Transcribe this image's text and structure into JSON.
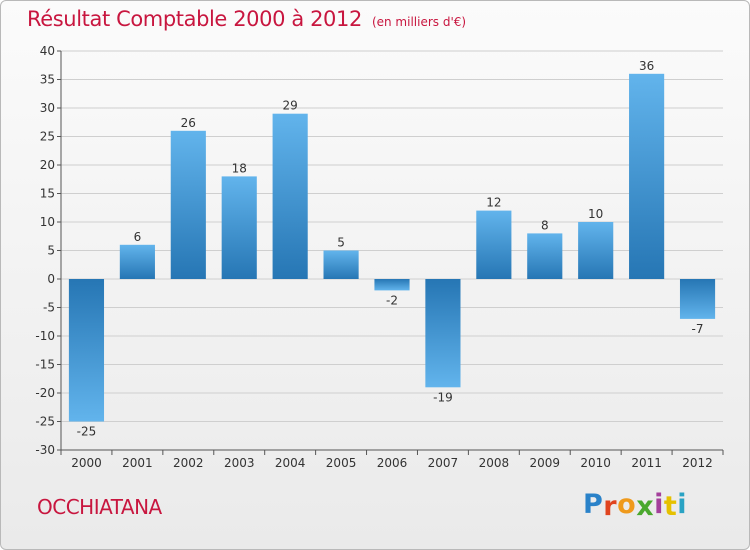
{
  "header": {
    "title": "Résultat Comptable 2000 à 2012",
    "unit": "(en milliers d'€)"
  },
  "footer": {
    "commune": "OCCHIATANA",
    "logo_letters": [
      "P",
      "r",
      "o",
      "x",
      "i",
      "t",
      "i"
    ],
    "logo_colors": [
      "#2a82c9",
      "#e0441f",
      "#ef9a1c",
      "#4aa82e",
      "#a43f9b",
      "#e6c100",
      "#2aa3c4"
    ]
  },
  "colors": {
    "bar_light": "#62b4ec",
    "bar_dark": "#2676b4",
    "title": "#c8163f"
  },
  "chart_data": {
    "type": "bar",
    "title": "Résultat Comptable 2000 à 2012",
    "ylabel": "en milliers d'€",
    "categories": [
      "2000",
      "2001",
      "2002",
      "2003",
      "2004",
      "2005",
      "2006",
      "2007",
      "2008",
      "2009",
      "2010",
      "2011",
      "2012"
    ],
    "values": [
      -25,
      6,
      26,
      18,
      29,
      5,
      -2,
      -19,
      12,
      8,
      10,
      36,
      -7
    ],
    "data_labels": [
      "-25",
      "6",
      "26",
      "18",
      "29",
      "5",
      "-2",
      "-19",
      "12",
      "8",
      "10",
      "36",
      "-7"
    ],
    "ylim": [
      -30,
      40
    ],
    "yticks": [
      -30,
      -25,
      -20,
      -15,
      -10,
      -5,
      0,
      5,
      10,
      15,
      20,
      25,
      30,
      35,
      40
    ],
    "ytick_labels": [
      "-30",
      "-25",
      "-20",
      "-15",
      "-10",
      "-5",
      "0",
      "5",
      "10",
      "15",
      "20",
      "25",
      "30",
      "35",
      "40"
    ],
    "grid": true
  }
}
